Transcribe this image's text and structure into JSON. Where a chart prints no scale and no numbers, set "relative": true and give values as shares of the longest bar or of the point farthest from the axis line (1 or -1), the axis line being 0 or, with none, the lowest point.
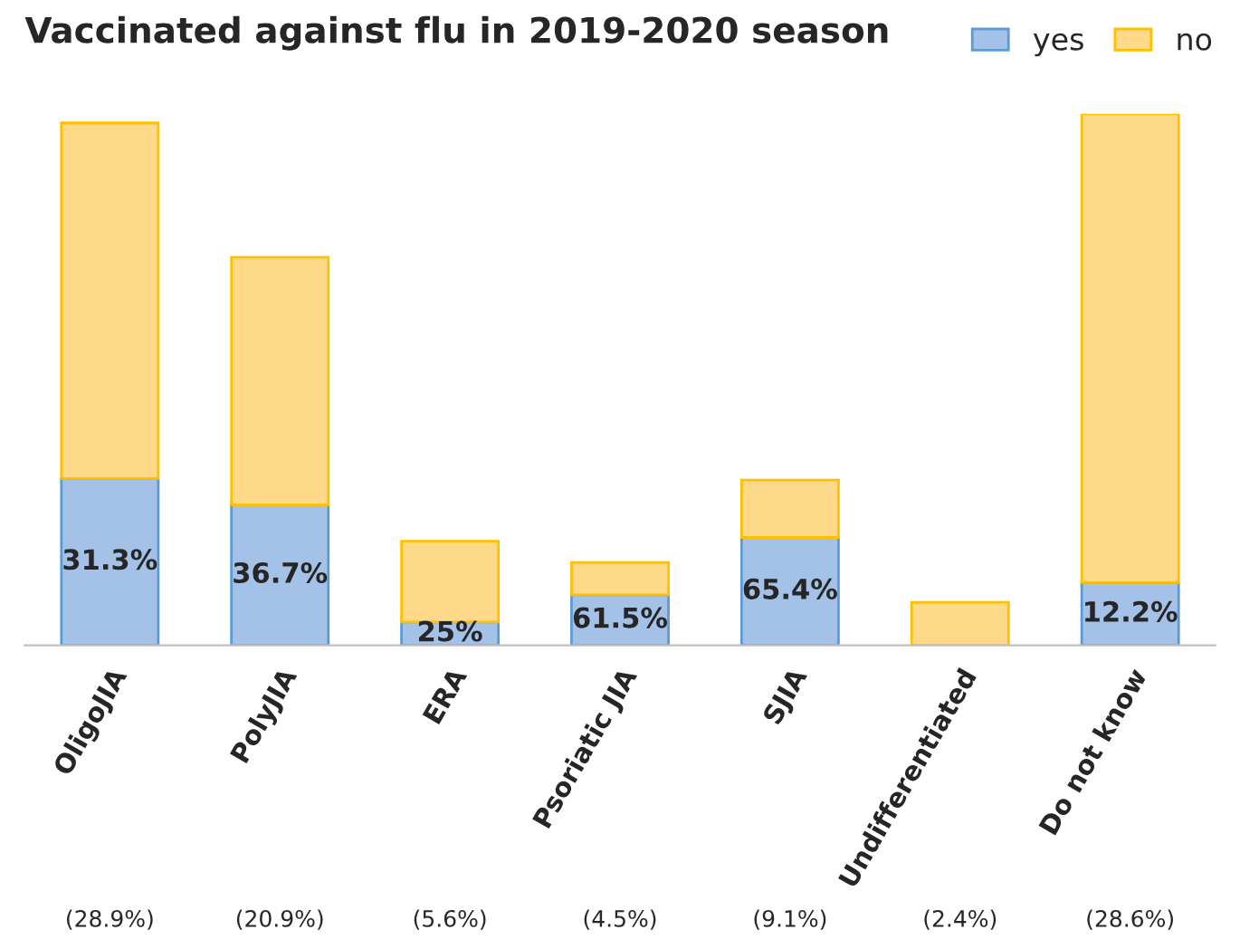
{
  "chart_data": {
    "type": "bar",
    "title": "Vaccinated against flu in 2019-2020 season",
    "stacked": true,
    "relative": true,
    "categories": [
      "OligoJIA",
      "PolyJIA",
      "ERA",
      "Psoriatic JIA",
      "SJIA",
      "Undifferentiated",
      "Do not know"
    ],
    "series": [
      {
        "name": "yes",
        "color": "#a4c2e8",
        "values": [
          0.314,
          0.264,
          0.044,
          0.095,
          0.203,
          0,
          0.118
        ]
      },
      {
        "name": "no",
        "color": "#ffd98a",
        "values": [
          0.669,
          0.466,
          0.152,
          0.061,
          0.108,
          0.081,
          0.882
        ]
      }
    ],
    "annotations": [
      {
        "text": "31.3%",
        "x": "OligoJIA",
        "y": 0.314
      },
      {
        "text": "36.7%",
        "x": "PolyJIA",
        "y": 0.264
      },
      {
        "text": "25%",
        "x": "ERA",
        "y": 0.044
      },
      {
        "text": "61.5%",
        "x": "Psoriatic JIA",
        "y": 0.095
      },
      {
        "text": "65.4%",
        "x": "SJIA",
        "y": 0.203
      },
      {
        "text": "12.2%",
        "x": "Do not know",
        "y": 0.118
      },
      "(28.9%)",
      "(20.9%)",
      "(5.6%)",
      "(4.5%)",
      "(9.1%)",
      "(2.4%)",
      "(28.6%)"
    ],
    "legend": "top right",
    "grid": false
  }
}
